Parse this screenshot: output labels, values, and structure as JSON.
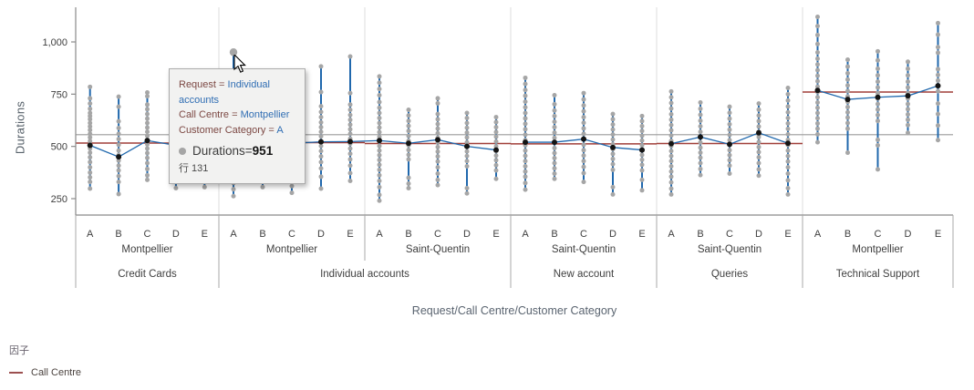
{
  "chart_data": {
    "type": "scatter",
    "subtype": "variability-chart (points, cell-mean connect line, factor mean line, grand mean line)",
    "title": "",
    "ylabel": "Durations",
    "xlabel": "Request/Call Centre/Customer Category",
    "y_ticks": [
      250,
      500,
      750,
      1000
    ],
    "y_tick_labels": [
      "250",
      "500",
      "750",
      "1,000"
    ],
    "ylim": [
      170,
      1165
    ],
    "grid": false,
    "legend_position": "bottom-left",
    "grand_mean": 556,
    "category_labels": [
      "A",
      "B",
      "C",
      "D",
      "E"
    ],
    "colors": {
      "point": "#a6a6a6",
      "whisker": "#2068ad",
      "mean_dot": "#141414",
      "mean_line": "#2068ad",
      "factor_line": "#a03e38",
      "grand_mean_line": "#9b9b9b",
      "separator": "#dcdcdc",
      "axis": "#8a8a8a",
      "table_line": "#a8a8a8",
      "tick_text": "#3d3d3d",
      "label_text": "#3f3f3f"
    },
    "panels": [
      {
        "request": "Credit Cards",
        "call_centre": "Montpellier",
        "factor_mean": 516,
        "cells": [
          {
            "category": "A",
            "mean": 505,
            "points": [
              785,
              730,
              705,
              680,
              660,
              645,
              630,
              612,
              595,
              578,
              560,
              543,
              525,
              508,
              490,
              470,
              448,
              425,
              400,
              375,
              352,
              330,
              298
            ]
          },
          {
            "category": "B",
            "mean": 450,
            "points": [
              738,
              690,
              620,
              588,
              560,
              535,
              508,
              480,
              458,
              432,
              408,
              385,
              358,
              330,
              272
            ]
          },
          {
            "category": "C",
            "mean": 528,
            "points": [
              758,
              740,
              700,
              678,
              655,
              633,
              612,
              590,
              570,
              550,
              530,
              510,
              490,
              468,
              445,
              420,
              392,
              362,
              340
            ]
          },
          {
            "category": "D",
            "mean": 505,
            "points": [
              700,
              665,
              630,
              598,
              565,
              535,
              505,
              478,
              450,
              425,
              400,
              368,
              332,
              300
            ]
          },
          {
            "category": "E",
            "mean": 515,
            "points": [
              690,
              655,
              622,
              590,
              560,
              532,
              505,
              480,
              455,
              430,
              402,
              372,
              340,
              305
            ]
          }
        ]
      },
      {
        "request": "Individual accounts",
        "call_centre": "Montpellier",
        "factor_mean": 518,
        "cells": [
          {
            "category": "A",
            "mean": 520,
            "points": [
              951,
              788,
              745,
              705,
              668,
              632,
              600,
              570,
              542,
              515,
              488,
              462,
              435,
              408,
              380,
              352,
              325,
              295,
              262
            ],
            "highlight_value": 951
          },
          {
            "category": "B",
            "mean": 512,
            "points": [
              728,
              690,
              652,
              618,
              585,
              555,
              525,
              498,
              470,
              442,
              415,
              388,
              360,
              330,
              305
            ]
          },
          {
            "category": "C",
            "mean": 515,
            "points": [
              702,
              665,
              630,
              598,
              565,
              535,
              508,
              480,
              452,
              425,
              398,
              370,
              340,
              310,
              278
            ]
          },
          {
            "category": "D",
            "mean": 522,
            "points": [
              883,
              760,
              692,
              665,
              640,
              615,
              592,
              570,
              548,
              525,
              502,
              478,
              452,
              425,
              395,
              355,
              298
            ]
          },
          {
            "category": "E",
            "mean": 523,
            "points": [
              930,
              755,
              700,
              675,
              650,
              627,
              604,
              582,
              560,
              537,
              513,
              490,
              465,
              438,
              408,
              372,
              335
            ]
          }
        ]
      },
      {
        "request": "Individual accounts",
        "call_centre": "Saint-Quentin",
        "factor_mean": 514,
        "cells": [
          {
            "category": "A",
            "mean": 528,
            "points": [
              835,
              805,
              775,
              745,
              712,
              685,
              660,
              636,
              612,
              590,
              568,
              546,
              524,
              502,
              480,
              458,
              435,
              412,
              388,
              362,
              335,
              305,
              268,
              240
            ]
          },
          {
            "category": "B",
            "mean": 515,
            "points": [
              675,
              648,
              622,
              598,
              574,
              550,
              527,
              505,
              483,
              460,
              438,
              350,
              322,
              300
            ]
          },
          {
            "category": "C",
            "mean": 532,
            "points": [
              730,
              706,
              655,
              630,
              607,
              585,
              563,
              541,
              519,
              497,
              475,
              452,
              428,
              400,
              370,
              340,
              315
            ]
          },
          {
            "category": "D",
            "mean": 500,
            "points": [
              660,
              636,
              612,
              589,
              566,
              543,
              520,
              498,
              476,
              454,
              430,
              405,
              300,
              275
            ]
          },
          {
            "category": "E",
            "mean": 483,
            "points": [
              640,
              616,
              592,
              569,
              546,
              523,
              500,
              478,
              456,
              434,
              410,
              385,
              345
            ]
          }
        ]
      },
      {
        "request": "New account",
        "call_centre": "Saint-Quentin",
        "factor_mean": 512,
        "cells": [
          {
            "category": "A",
            "mean": 520,
            "points": [
              828,
              799,
              770,
              742,
              714,
              687,
              660,
              634,
              608,
              582,
              556,
              530,
              505,
              480,
              455,
              430,
              405,
              380,
              355,
              325,
              293
            ]
          },
          {
            "category": "B",
            "mean": 520,
            "points": [
              745,
              702,
              672,
              645,
              618,
              592,
              566,
              541,
              516,
              492,
              468,
              444,
              420,
              395,
              370,
              345
            ]
          },
          {
            "category": "C",
            "mean": 535,
            "points": [
              755,
              725,
              696,
              668,
              640,
              613,
              586,
              560,
              534,
              508,
              482,
              456,
              430,
              402,
              372,
              330
            ]
          },
          {
            "category": "D",
            "mean": 495,
            "points": [
              655,
              630,
              605,
              581,
              557,
              533,
              510,
              487,
              464,
              440,
              415,
              388,
              305,
              270
            ]
          },
          {
            "category": "E",
            "mean": 483,
            "points": [
              645,
              621,
              597,
              574,
              551,
              528,
              505,
              482,
              459,
              436,
              412,
              385,
              340,
              290
            ]
          }
        ]
      },
      {
        "request": "Queries",
        "call_centre": "Saint-Quentin",
        "factor_mean": 514,
        "cells": [
          {
            "category": "A",
            "mean": 513,
            "points": [
              763,
              735,
              708,
              681,
              654,
              628,
              602,
              577,
              552,
              527,
              502,
              478,
              454,
              430,
              405,
              380,
              355,
              328,
              298,
              270
            ]
          },
          {
            "category": "B",
            "mean": 545,
            "points": [
              710,
              680,
              651,
              623,
              596,
              570,
              544,
              519,
              494,
              470,
              446,
              420,
              392,
              363
            ]
          },
          {
            "category": "C",
            "mean": 510,
            "points": [
              690,
              661,
              633,
              606,
              580,
              555,
              530,
              506,
              482,
              458,
              434,
              408,
              370
            ]
          },
          {
            "category": "D",
            "mean": 565,
            "points": [
              705,
              676,
              648,
              621,
              595,
              570,
              545,
              521,
              497,
              473,
              448,
              420,
              390,
              360
            ]
          },
          {
            "category": "E",
            "mean": 515,
            "points": [
              780,
              750,
              720,
              691,
              663,
              636,
              610,
              584,
              558,
              532,
              506,
              480,
              454,
              428,
              400,
              370,
              338,
              300,
              270
            ]
          }
        ]
      },
      {
        "request": "Technical Support",
        "call_centre": "Montpellier",
        "factor_mean": 760,
        "cells": [
          {
            "category": "A",
            "mean": 768,
            "points": [
              1120,
              1076,
              1033,
              990,
              950,
              920,
              892,
              865,
              838,
              812,
              786,
              760,
              735,
              710,
              685,
              660,
              635,
              610,
              585,
              558,
              520
            ]
          },
          {
            "category": "B",
            "mean": 725,
            "points": [
              915,
              882,
              850,
              820,
              792,
              765,
              739,
              713,
              688,
              663,
              638,
              612,
              585,
              470
            ]
          },
          {
            "category": "C",
            "mean": 735,
            "points": [
              955,
              912,
              872,
              840,
              810,
              782,
              755,
              729,
              703,
              677,
              650,
              622,
              532,
              505,
              390
            ]
          },
          {
            "category": "D",
            "mean": 742,
            "points": [
              905,
              872,
              840,
              810,
              782,
              755,
              729,
              703,
              678,
              653,
              628,
              602,
              565
            ]
          },
          {
            "category": "E",
            "mean": 790,
            "points": [
              1090,
              1035,
              975,
              948,
              870,
              842,
              815,
              790,
              764,
              705,
              655,
              600,
              530
            ]
          }
        ]
      }
    ],
    "legend": {
      "title": "因子",
      "items": [
        {
          "label": "Call Centre",
          "color": "#9c5050"
        }
      ]
    }
  },
  "tooltip": {
    "r1_label": "Request = ",
    "r1_value": "Individual accounts",
    "r2_label": "Call Centre = ",
    "r2_value": "Montpellier",
    "r3_label": "Customer Category = ",
    "r3_value": "A",
    "dur_label": "Durations",
    "dur_eq": " = ",
    "dur_value": "951",
    "row_ref": "行 131"
  }
}
